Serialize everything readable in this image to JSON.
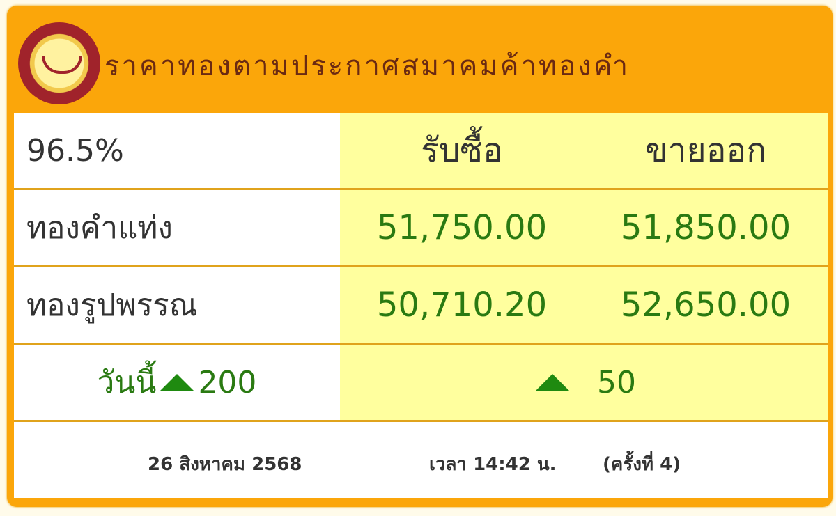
{
  "header": {
    "title": "ราคาทองตามประกาศสมาคมค้าทองคำ",
    "logo": "gold-traders-association-logo"
  },
  "table": {
    "purity": "96.5%",
    "col_buy": "รับซื้อ",
    "col_sell": "ขายออก",
    "rows": [
      {
        "label": "ทองคำแท่ง",
        "buy": "51,750.00",
        "sell": "51,850.00"
      },
      {
        "label": "ทองรูปพรรณ",
        "buy": "50,710.20",
        "sell": "52,650.00"
      }
    ],
    "change": {
      "label": "วันนี้",
      "left_value": "200",
      "right_value": "50",
      "direction": "up",
      "color": "#1f8a10"
    }
  },
  "footer": {
    "date": "26 สิงหาคม 2568",
    "time": "เวลา 14:42 น.",
    "round": "(ครั้งที่ 4)"
  },
  "colors": {
    "frame": "#fba60a",
    "highlight": "#ffff9e",
    "price": "#2a7a12"
  }
}
